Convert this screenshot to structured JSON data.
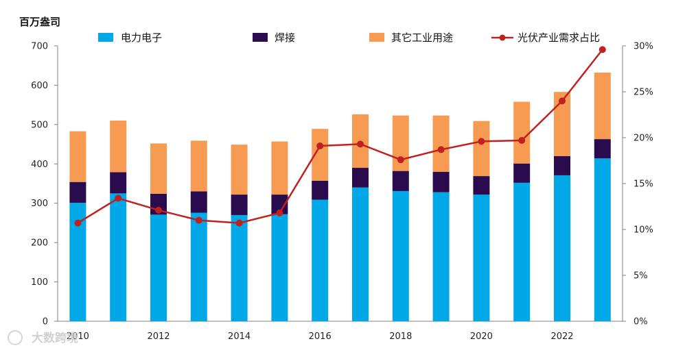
{
  "chart_data": {
    "type": "bar",
    "stacked": true,
    "unit_label": "百万盎司",
    "categories": [
      "2010",
      "2011",
      "2012",
      "2013",
      "2014",
      "2015",
      "2016",
      "2017",
      "2018",
      "2019",
      "2020",
      "2021",
      "2022",
      "2023"
    ],
    "x_tick_labels": [
      "2010",
      "2012",
      "2014",
      "2016",
      "2018",
      "2020",
      "2022"
    ],
    "series": [
      {
        "name": "电力电子",
        "color": "#00a8e8",
        "values": [
          301,
          325,
          271,
          276,
          270,
          272,
          309,
          340,
          331,
          328,
          322,
          352,
          371,
          414
        ]
      },
      {
        "name": "焊接",
        "color": "#2a0c4e",
        "values": [
          53,
          54,
          53,
          54,
          52,
          50,
          48,
          50,
          51,
          52,
          47,
          49,
          49,
          49
        ]
      },
      {
        "name": "其它工业用途",
        "color": "#f79a52",
        "values": [
          129,
          131,
          128,
          129,
          127,
          135,
          132,
          136,
          141,
          143,
          140,
          157,
          163,
          169
        ]
      }
    ],
    "line_series": {
      "name": "光伏产业需求占比",
      "color": "#c0201e",
      "axis": "right",
      "values": [
        10.7,
        13.4,
        12.1,
        11.0,
        10.7,
        11.8,
        19.1,
        19.3,
        17.6,
        18.7,
        19.6,
        19.7,
        24.0,
        29.6
      ]
    },
    "y_left": {
      "min": 0,
      "max": 700,
      "step": 100,
      "ticks": [
        "0",
        "100",
        "200",
        "300",
        "400",
        "500",
        "600",
        "700"
      ]
    },
    "y_right": {
      "min": 0,
      "max": 30,
      "step": 5,
      "ticks": [
        "0%",
        "5%",
        "10%",
        "15%",
        "20%",
        "25%",
        "30%"
      ]
    },
    "legend_position": "top"
  },
  "watermark": "大数跨境"
}
